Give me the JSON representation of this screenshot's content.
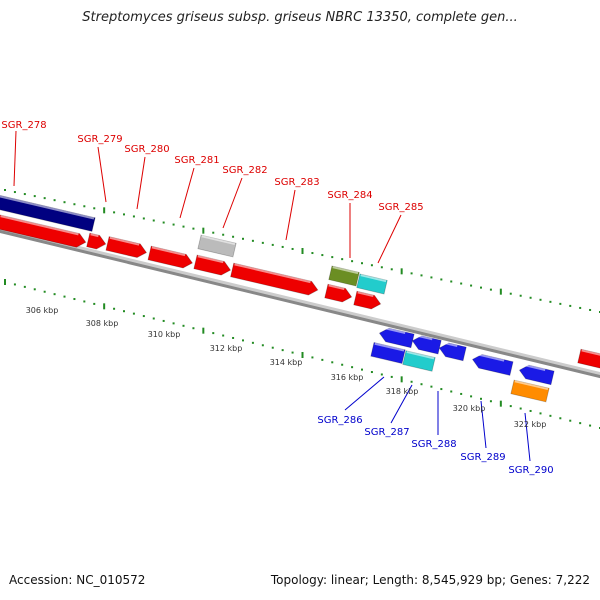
{
  "header": {
    "title": "Streptomyces griseus subsp. griseus NBRC 13350, complete gen..."
  },
  "footer": {
    "accession": "Accession: NC_010572",
    "summary": "Topology: linear; Length: 8,545,929 bp; Genes: 7,222"
  },
  "colors": {
    "forward_label": "#dd0000",
    "reverse_label": "#0000cc",
    "backbone": "#888888",
    "tick": "#228b22",
    "gene_red": "#ee0000",
    "gene_blue": "#1a1ae6",
    "gene_navy": "#000080",
    "gene_cyan": "#22cccc",
    "gene_olive": "#6b8e23",
    "gene_grey": "#bbbbbb",
    "gene_orange": "#ff8c00"
  },
  "ruler": {
    "labels": [
      "306 kbp",
      "308 kbp",
      "310 kbp",
      "312 kbp",
      "314 kbp",
      "316 kbp",
      "318 kbp",
      "320 kbp",
      "322 kbp"
    ]
  },
  "forward_genes": [
    {
      "label": "SGR_278"
    },
    {
      "label": "SGR_279"
    },
    {
      "label": "SGR_280"
    },
    {
      "label": "SGR_281"
    },
    {
      "label": "SGR_282"
    },
    {
      "label": "SGR_283"
    },
    {
      "label": "SGR_284"
    },
    {
      "label": "SGR_285"
    }
  ],
  "reverse_genes": [
    {
      "label": "SGR_286"
    },
    {
      "label": "SGR_287"
    },
    {
      "label": "SGR_288"
    },
    {
      "label": "SGR_289"
    },
    {
      "label": "SGR_290"
    }
  ]
}
